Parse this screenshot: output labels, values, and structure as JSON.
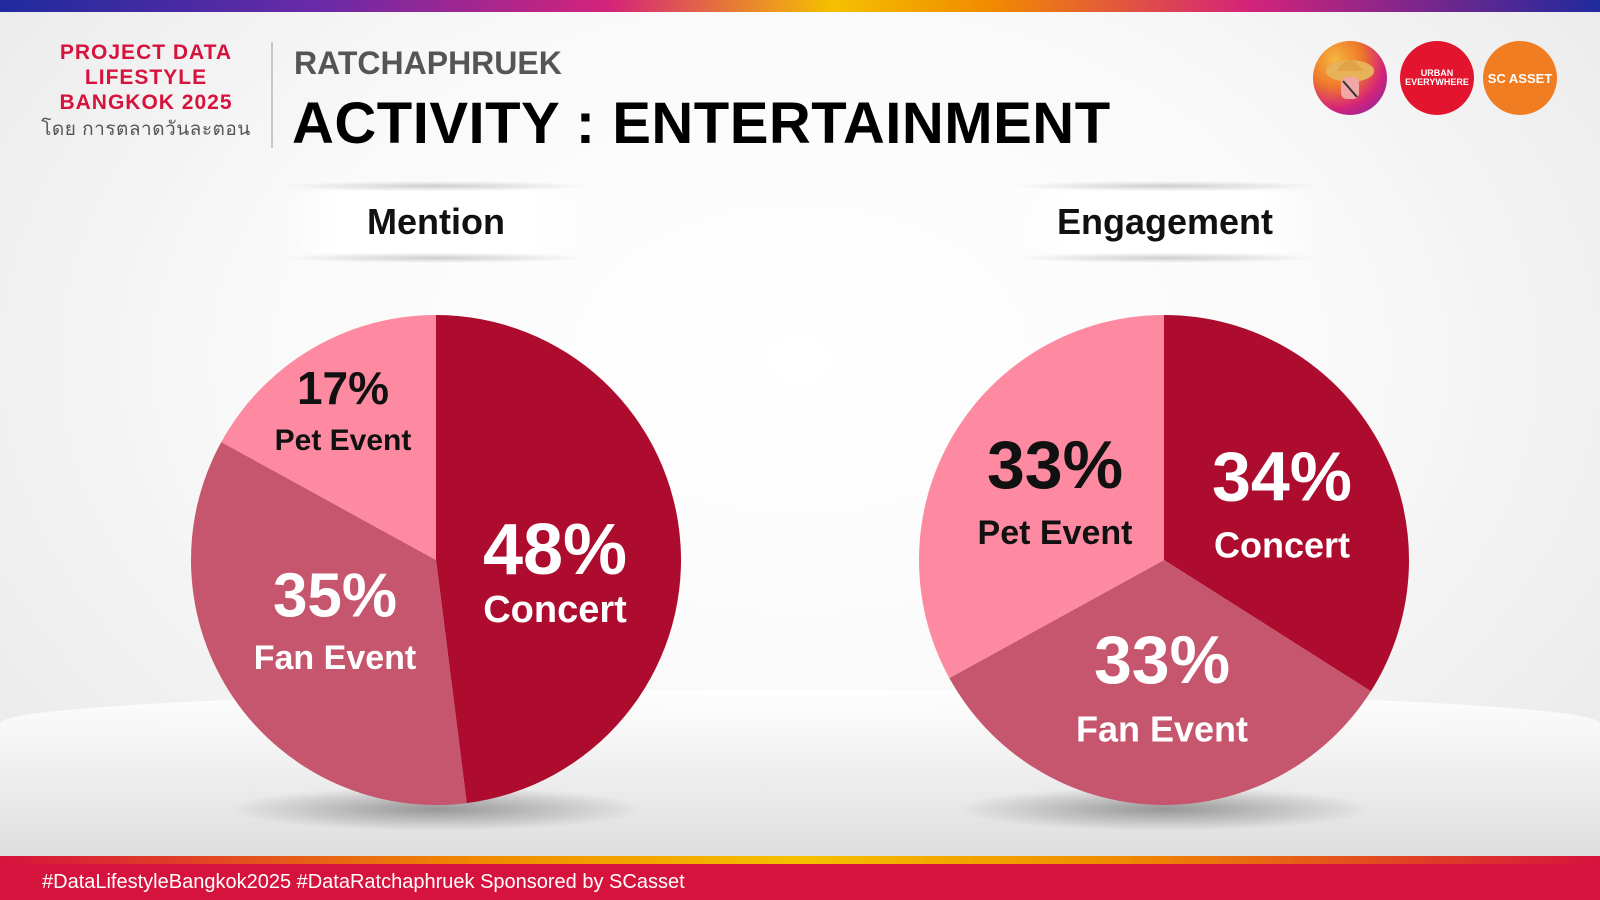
{
  "header": {
    "brand_lines": [
      "PROJECT DATA",
      "LIFESTYLE",
      "BANGKOK 2025"
    ],
    "brand_thai": "โดย การตลาดวันละตอน",
    "subtitle": "RATCHAPHRUEK",
    "title": "ACTIVITY : ENTERTAINMENT",
    "logos": {
      "logo1_icon": "illustrated-traveler-logo",
      "logo2_text": "URBAN EVERYWHERE",
      "logo3_text": "SC ASSET"
    }
  },
  "colors": {
    "concert": "#ad0c2f",
    "fan_event": "#c6566e",
    "pet_event": "#fe8aa2",
    "brand_red": "#d6133d"
  },
  "chart_data": [
    {
      "type": "pie",
      "title": "Mention",
      "categories": [
        "Concert",
        "Fan Event",
        "Pet Event"
      ],
      "values": [
        48,
        35,
        17
      ],
      "labels": [
        "48%",
        "35%",
        "17%"
      ]
    },
    {
      "type": "pie",
      "title": "Engagement",
      "categories": [
        "Concert",
        "Fan Event",
        "Pet Event"
      ],
      "values": [
        34,
        33,
        33
      ],
      "labels": [
        "34%",
        "33%",
        "33%"
      ]
    }
  ],
  "footer": {
    "text": "#DataLifestyleBangkok2025 #DataRatchaphruek Sponsored by SCasset"
  }
}
